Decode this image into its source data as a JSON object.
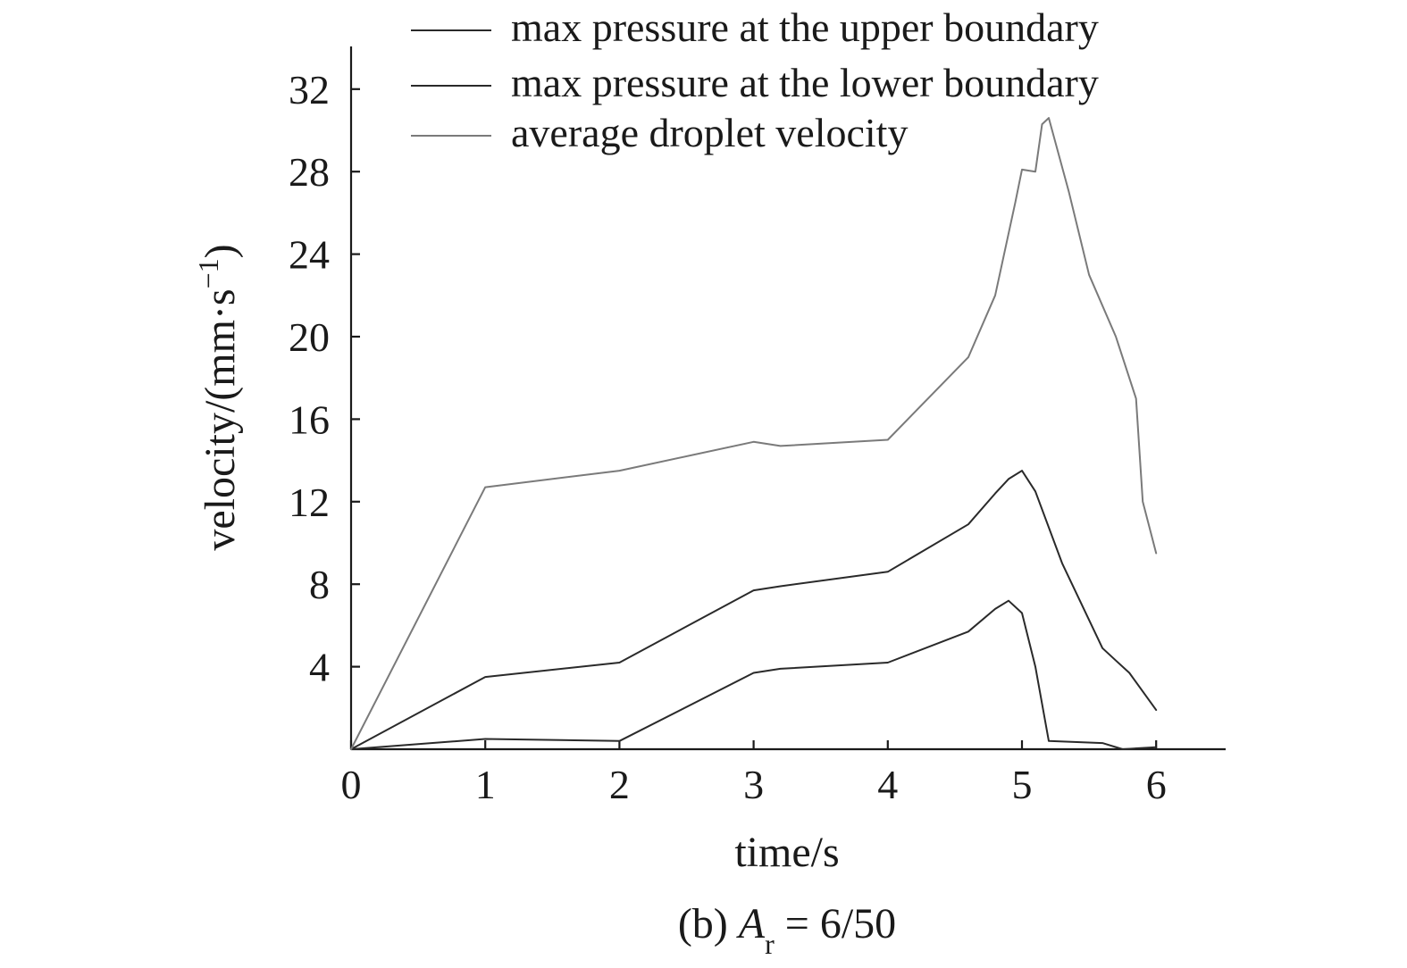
{
  "chart_data": {
    "type": "line",
    "xlabel": "time/s",
    "ylabel": "velocity/(mm·s",
    "ylabel_sup": "−1",
    "ylabel_close": ")",
    "caption_prefix": "(b) ",
    "caption_var": "A",
    "caption_sub": "r",
    "caption_suffix": " = 6/50",
    "xlim": [
      0,
      6.5
    ],
    "ylim": [
      0,
      34
    ],
    "xticks": [
      0,
      1,
      2,
      3,
      4,
      5,
      6
    ],
    "yticks": [
      4,
      8,
      12,
      16,
      20,
      24,
      28,
      32
    ],
    "grid": false,
    "legend_position": "top-right",
    "series": [
      {
        "name": "max pressure at the upper boundary",
        "color": "#2a2a2a",
        "x": [
          0,
          1,
          2,
          3,
          3.2,
          4,
          4.6,
          4.8,
          4.9,
          5,
          5.1,
          5.2,
          5.6,
          5.75,
          6
        ],
        "y": [
          0,
          0.5,
          0.4,
          3.7,
          3.9,
          4.2,
          5.7,
          6.8,
          7.2,
          6.6,
          4.0,
          0.4,
          0.3,
          0,
          0.1
        ]
      },
      {
        "name": "max pressure at the lower boundary",
        "color": "#2a2a2a",
        "x": [
          0,
          1,
          2,
          3,
          3.2,
          4,
          4.6,
          4.8,
          4.9,
          5,
          5.1,
          5.3,
          5.6,
          5.7,
          5.8,
          6
        ],
        "y": [
          0,
          3.5,
          4.2,
          7.7,
          7.9,
          8.6,
          10.9,
          12.4,
          13.1,
          13.5,
          12.5,
          9.0,
          4.9,
          4.3,
          3.7,
          1.9
        ]
      },
      {
        "name": "average droplet velocity",
        "color": "#7a7a7a",
        "x": [
          0,
          1,
          2,
          3,
          3.2,
          4,
          4.6,
          4.8,
          4.95,
          5,
          5.1,
          5.15,
          5.2,
          5.35,
          5.5,
          5.7,
          5.85,
          5.9,
          6
        ],
        "y": [
          0,
          12.7,
          13.5,
          14.9,
          14.7,
          15.0,
          19.0,
          22.0,
          26.5,
          28.1,
          28.0,
          30.3,
          30.6,
          27.0,
          23.0,
          20.0,
          17.0,
          12.0,
          9.5
        ]
      }
    ]
  }
}
